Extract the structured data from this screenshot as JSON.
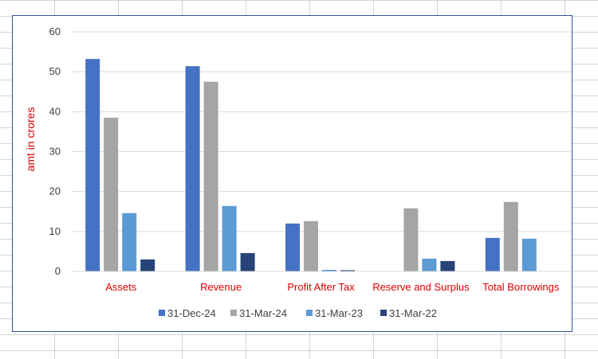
{
  "chart_data": {
    "type": "bar",
    "title": "",
    "xlabel": "",
    "ylabel": "amt in crores",
    "ylim": [
      0,
      60
    ],
    "yticks": [
      0,
      10,
      20,
      30,
      40,
      50,
      60
    ],
    "grid": true,
    "legend_position": "bottom",
    "categories": [
      "Assets",
      "Revenue",
      "Profit After Tax",
      "Reserve and Surplus",
      "Total Borrowings"
    ],
    "series": [
      {
        "name": "31-Dec-24",
        "color": "#4472c4",
        "values": [
          53.2,
          51.4,
          12.0,
          null,
          8.4
        ]
      },
      {
        "name": "31-Mar-24",
        "color": "#a5a5a5",
        "values": [
          38.5,
          47.5,
          12.6,
          15.8,
          17.4
        ]
      },
      {
        "name": "31-Mar-23",
        "color": "#5b9bd5",
        "values": [
          14.6,
          16.4,
          0.4,
          3.2,
          8.2
        ]
      },
      {
        "name": "31-Mar-22",
        "color": "#264478",
        "values": [
          3.0,
          4.6,
          0.3,
          2.6,
          null
        ]
      }
    ]
  }
}
